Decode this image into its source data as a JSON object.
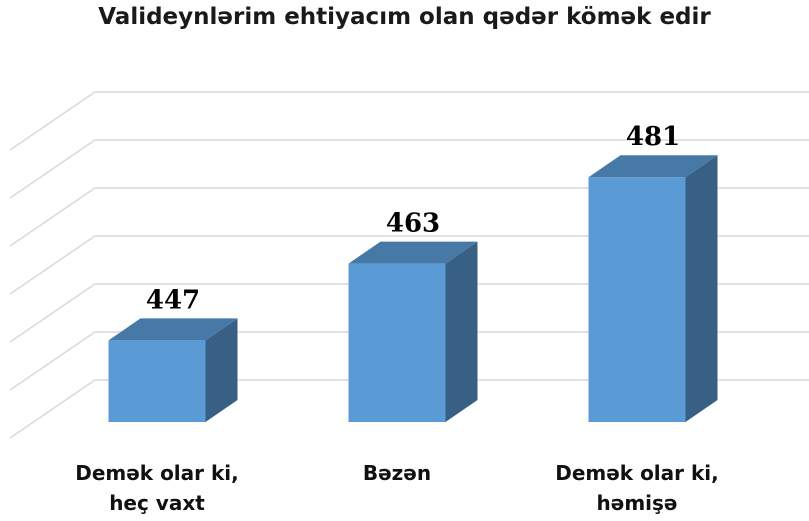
{
  "chart_data": {
    "type": "bar3d",
    "title": "Valideynlərim ehtiyacım olan qədər kömək edir",
    "categories": [
      "Demək olar ki, heç vaxt",
      "Bəzən",
      "Demək olar ki, həmişə"
    ],
    "values": [
      447,
      463,
      481
    ],
    "color": "#5b9bd5",
    "ylim": [
      430,
      490
    ],
    "yticks": [
      430,
      440,
      450,
      460,
      470,
      480,
      490
    ],
    "grid": true
  }
}
